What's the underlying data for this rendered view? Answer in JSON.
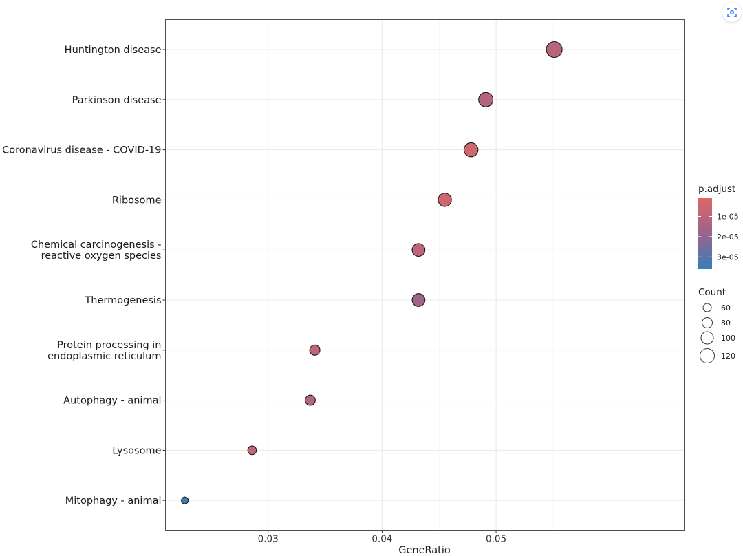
{
  "chart_data": {
    "type": "scatter",
    "xlabel": "GeneRatio",
    "ylabel": "",
    "xlim": [
      0.021,
      0.0665
    ],
    "x_ticks": [
      0.03,
      0.04,
      0.05
    ],
    "x_tick_labels": [
      "0.03",
      "0.04",
      "0.05"
    ],
    "grid": true,
    "categories": [
      [
        "Huntington disease"
      ],
      [
        "Parkinson disease"
      ],
      [
        "Coronavirus disease - COVID-19"
      ],
      [
        "Ribosome"
      ],
      [
        "Chemical carcinogenesis -",
        "reactive oxygen species"
      ],
      [
        "Thermogenesis"
      ],
      [
        "Protein processing in",
        "endoplasmic reticulum"
      ],
      [
        "Autophagy - animal"
      ],
      [
        "Lysosome"
      ],
      [
        "Mitophagy - animal"
      ]
    ],
    "points": [
      {
        "x": 0.0551,
        "count": 126,
        "p_adjust": 1.1e-05
      },
      {
        "x": 0.0491,
        "count": 114,
        "p_adjust": 1.2e-05
      },
      {
        "x": 0.0478,
        "count": 111,
        "p_adjust": 5e-06
      },
      {
        "x": 0.0455,
        "count": 105,
        "p_adjust": 5e-06
      },
      {
        "x": 0.0432,
        "count": 101,
        "p_adjust": 9e-06
      },
      {
        "x": 0.0432,
        "count": 101,
        "p_adjust": 1.8e-05
      },
      {
        "x": 0.0341,
        "count": 80,
        "p_adjust": 9e-06
      },
      {
        "x": 0.0337,
        "count": 79,
        "p_adjust": 1.2e-05
      },
      {
        "x": 0.0286,
        "count": 67,
        "p_adjust": 9e-06
      },
      {
        "x": 0.0227,
        "count": 52,
        "p_adjust": 3.5e-05
      }
    ],
    "legend_color": {
      "title": "p.adjust",
      "ticks": [
        1e-05,
        2e-05,
        3e-05
      ],
      "tick_labels": [
        "1e-05",
        "2e-05",
        "3e-05"
      ],
      "range": [
        1e-06,
        3.6e-05
      ],
      "low_color": "#E06666",
      "high_color": "#377EB8"
    },
    "legend_size": {
      "title": "Count",
      "values": [
        60,
        80,
        100,
        120
      ],
      "labels": [
        "60",
        "80",
        "100",
        "120"
      ]
    },
    "legend_position": "right"
  },
  "toolbar": {
    "icon": "screenshot-icon"
  }
}
